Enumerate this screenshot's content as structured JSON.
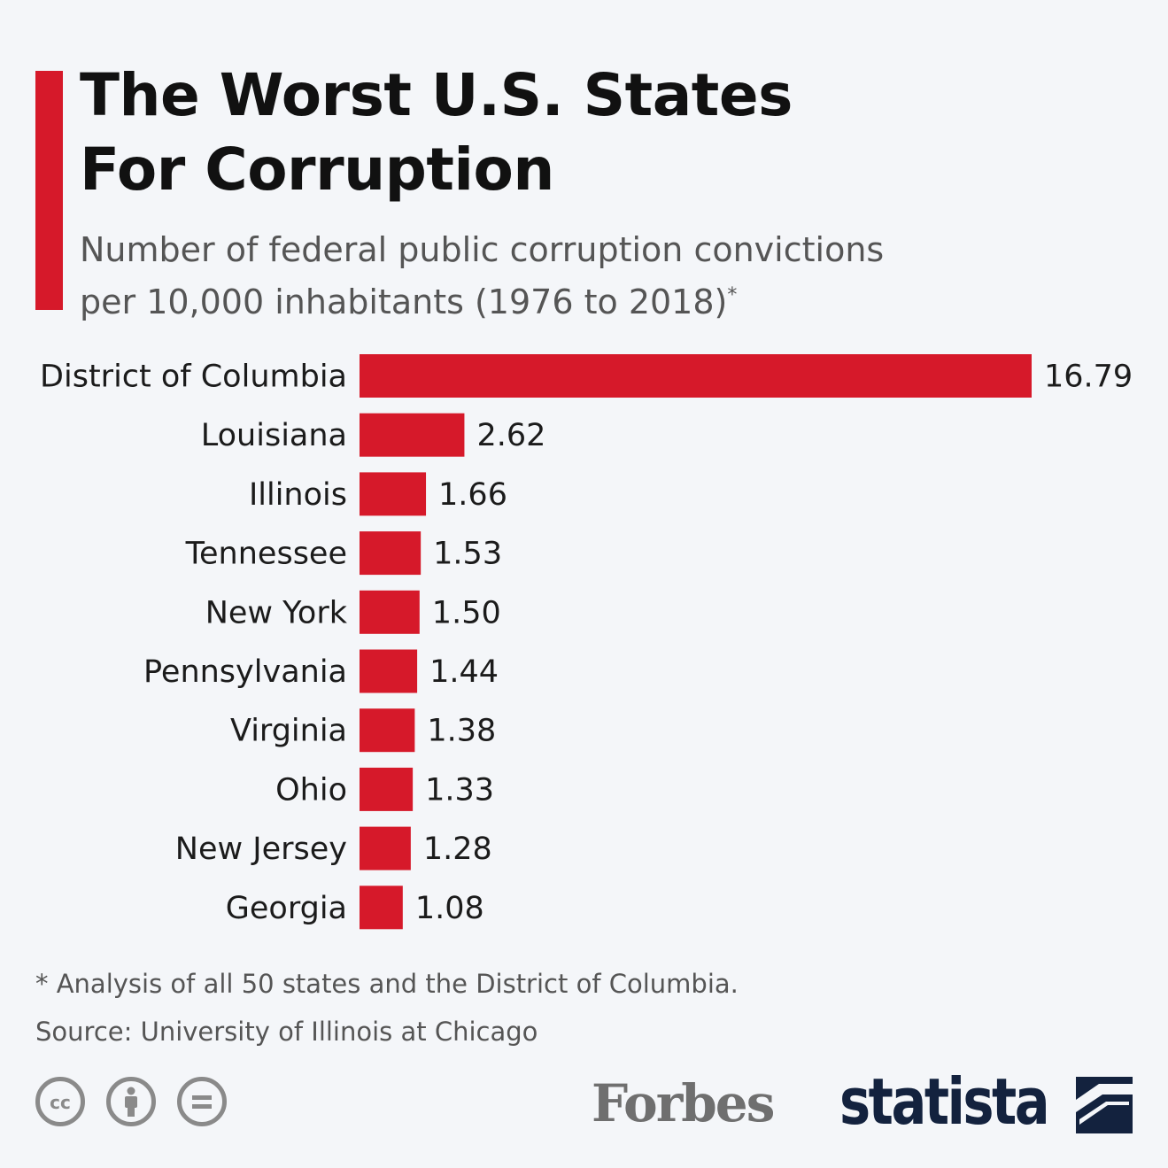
{
  "header": {
    "title_line1": "The Worst U.S. States",
    "title_line2": "For Corruption",
    "subtitle_line1": "Number of federal public corruption convictions",
    "subtitle_line2": "per 10,000 inhabitants (1976 to 2018)",
    "subtitle_marker": "*"
  },
  "chart_data": {
    "type": "bar",
    "orientation": "horizontal",
    "categories": [
      "District of Columbia",
      "Louisiana",
      "Illinois",
      "Tennessee",
      "New York",
      "Pennsylvania",
      "Virginia",
      "Ohio",
      "New Jersey",
      "Georgia"
    ],
    "values": [
      16.79,
      2.62,
      1.66,
      1.53,
      1.5,
      1.44,
      1.38,
      1.33,
      1.28,
      1.08
    ],
    "value_labels": [
      "16.79",
      "2.62",
      "1.66",
      "1.53",
      "1.50",
      "1.44",
      "1.38",
      "1.33",
      "1.28",
      "1.08"
    ],
    "title": "The Worst U.S. States For Corruption",
    "xlim": [
      0,
      16.79
    ],
    "bar_color": "#d6192a",
    "grid": false,
    "legend": "none"
  },
  "footer": {
    "footnote": "* Analysis of all 50 states and the District of Columbia.",
    "source": "Source: University of Illinois at Chicago",
    "cc_icons": [
      "cc-icon",
      "by-person-icon",
      "nd-equals-icon"
    ],
    "forbes_logo": "Forbes",
    "statista_logo": "statista"
  },
  "colors": {
    "accent": "#d6192a",
    "background": "#f4f6f9",
    "statista_navy": "#13223e"
  }
}
